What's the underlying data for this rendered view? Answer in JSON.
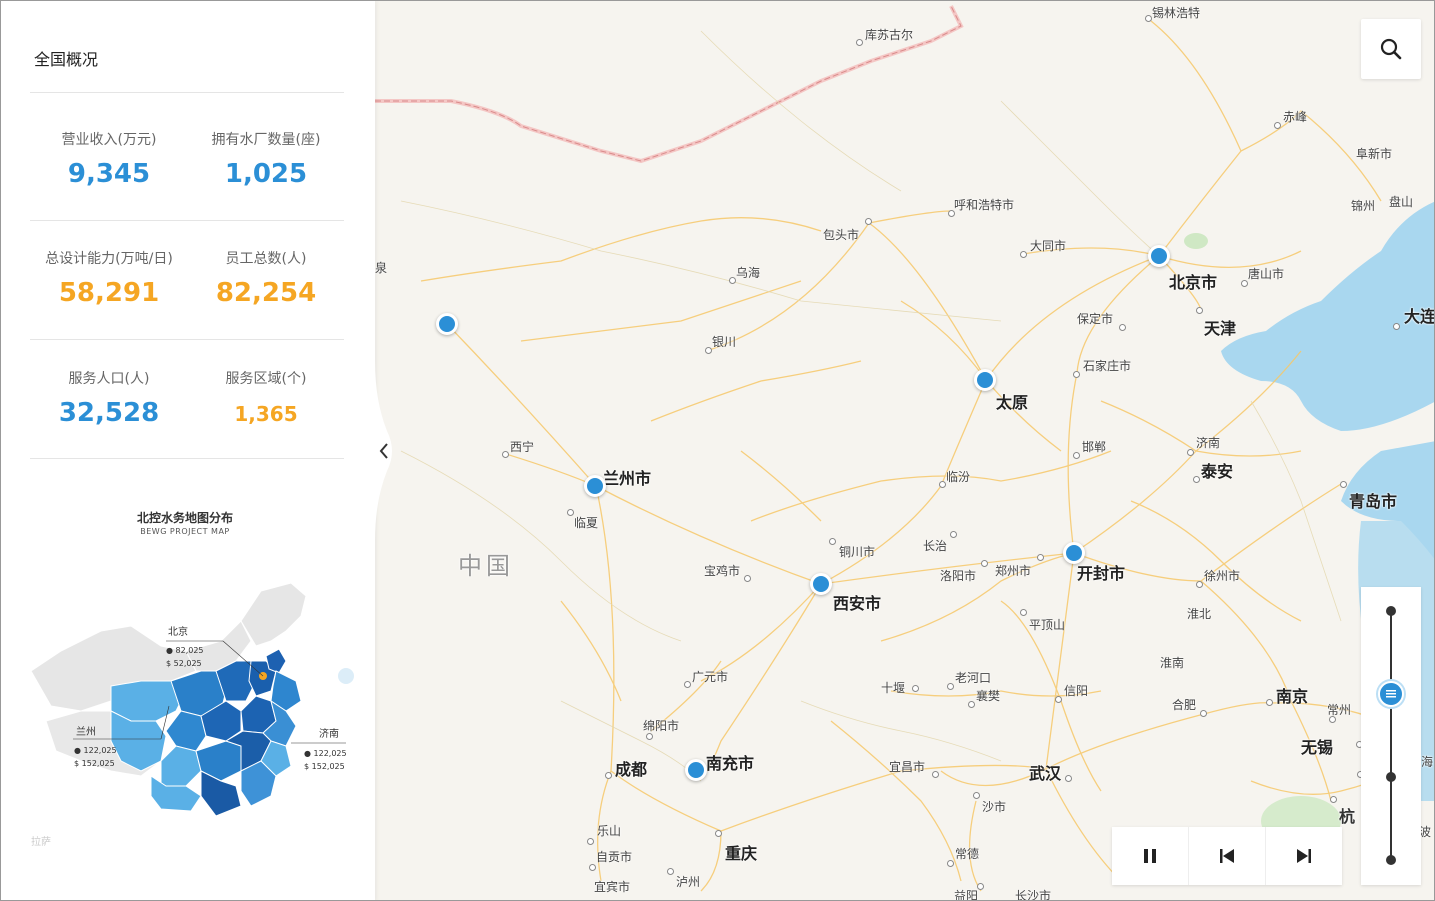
{
  "panel": {
    "title": "全国概况",
    "stats": [
      {
        "label": "营业收入(万元)",
        "value": "9,345",
        "color": "blue"
      },
      {
        "label": "拥有水厂数量(座)",
        "value": "1,025",
        "color": "blue"
      },
      {
        "label": "总设计能力(万吨/日)",
        "value": "58,291",
        "color": "orange"
      },
      {
        "label": "员工总数(人)",
        "value": "82,254",
        "color": "orange"
      },
      {
        "label": "服务人口(人)",
        "value": "32,528",
        "color": "blue"
      },
      {
        "label": "服务区域(个)",
        "value": "1,365",
        "color": "orange"
      }
    ],
    "minimap": {
      "title": "北控水务地图分布",
      "subtitle": "BEWG PROJECT MAP",
      "callouts": [
        {
          "name": "北京",
          "a": "82,025",
          "b": "52,025"
        },
        {
          "name": "兰州",
          "a": "122,025",
          "b": "152,025"
        },
        {
          "name": "济南",
          "a": "122,025",
          "b": "152,025"
        }
      ],
      "faint_labels": [
        "拉萨"
      ]
    }
  },
  "map": {
    "country": "中国",
    "cities_big": [
      "北京市",
      "天津",
      "太原",
      "兰州市",
      "西安市",
      "开封市",
      "青岛市",
      "成都",
      "南充市",
      "重庆",
      "武汉",
      "南京",
      "无锡",
      "泰安",
      "大连"
    ],
    "cities_small": [
      "锡林浩特",
      "库苏古尔",
      "赤峰",
      "阜新市",
      "锦州",
      "盘山",
      "呼和浩特市",
      "包头市",
      "大同市",
      "唐山市",
      "乌海",
      "保定市",
      "银川",
      "石家庄市",
      "邯郸",
      "济南",
      "西宁",
      "临汾",
      "临夏",
      "铜川市",
      "长治",
      "宝鸡市",
      "洛阳市",
      "郑州市",
      "徐州市",
      "平顶山",
      "淮北",
      "广元市",
      "淮南",
      "老河口",
      "襄樊",
      "十堰",
      "信阳",
      "合肥",
      "常州",
      "绵阳市",
      "宜昌市",
      "沙市",
      "乐山",
      "自贡市",
      "常德",
      "宜宾市",
      "泸州",
      "益阳",
      "长沙市",
      "杭",
      "海",
      "波",
      "泉"
    ]
  },
  "controls": {
    "search_icon": "search-icon",
    "playback": [
      "pause-icon",
      "skip-back-icon",
      "skip-forward-icon"
    ],
    "timeline_ticks": 3,
    "timeline_position": 0.33
  },
  "colors": {
    "accent_blue": "#2b8fd6",
    "accent_orange": "#f5a623"
  }
}
